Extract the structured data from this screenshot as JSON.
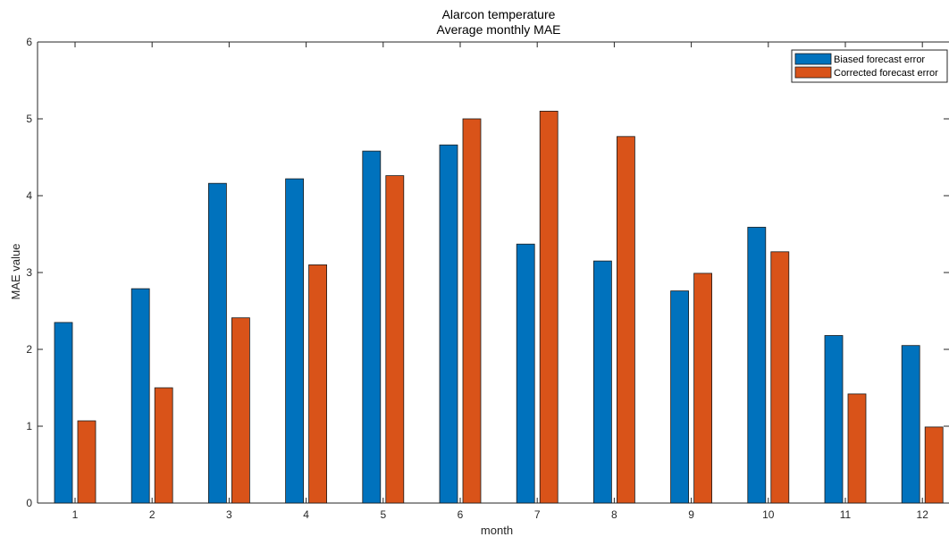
{
  "chart_data": {
    "type": "bar",
    "title": "Alarcon temperature",
    "subtitle": "Average monthly MAE",
    "xlabel": "month",
    "ylabel": "MAE value",
    "categories": [
      "1",
      "2",
      "3",
      "4",
      "5",
      "6",
      "7",
      "8",
      "9",
      "10",
      "11",
      "12"
    ],
    "ylim": [
      0,
      6
    ],
    "yticks": [
      "0",
      "1",
      "2",
      "3",
      "4",
      "5",
      "6"
    ],
    "grid": false,
    "legend_position": "top-right",
    "series": [
      {
        "name": "Biased forecast error",
        "color": "#0072BD",
        "values": [
          2.35,
          2.79,
          4.16,
          4.22,
          4.58,
          4.66,
          3.37,
          3.15,
          2.76,
          3.59,
          2.18,
          2.05
        ]
      },
      {
        "name": "Corrected forecast error",
        "color": "#D95319",
        "values": [
          1.07,
          1.5,
          2.41,
          3.1,
          4.26,
          5.0,
          5.1,
          4.77,
          2.99,
          3.27,
          1.42,
          0.99
        ]
      }
    ]
  }
}
